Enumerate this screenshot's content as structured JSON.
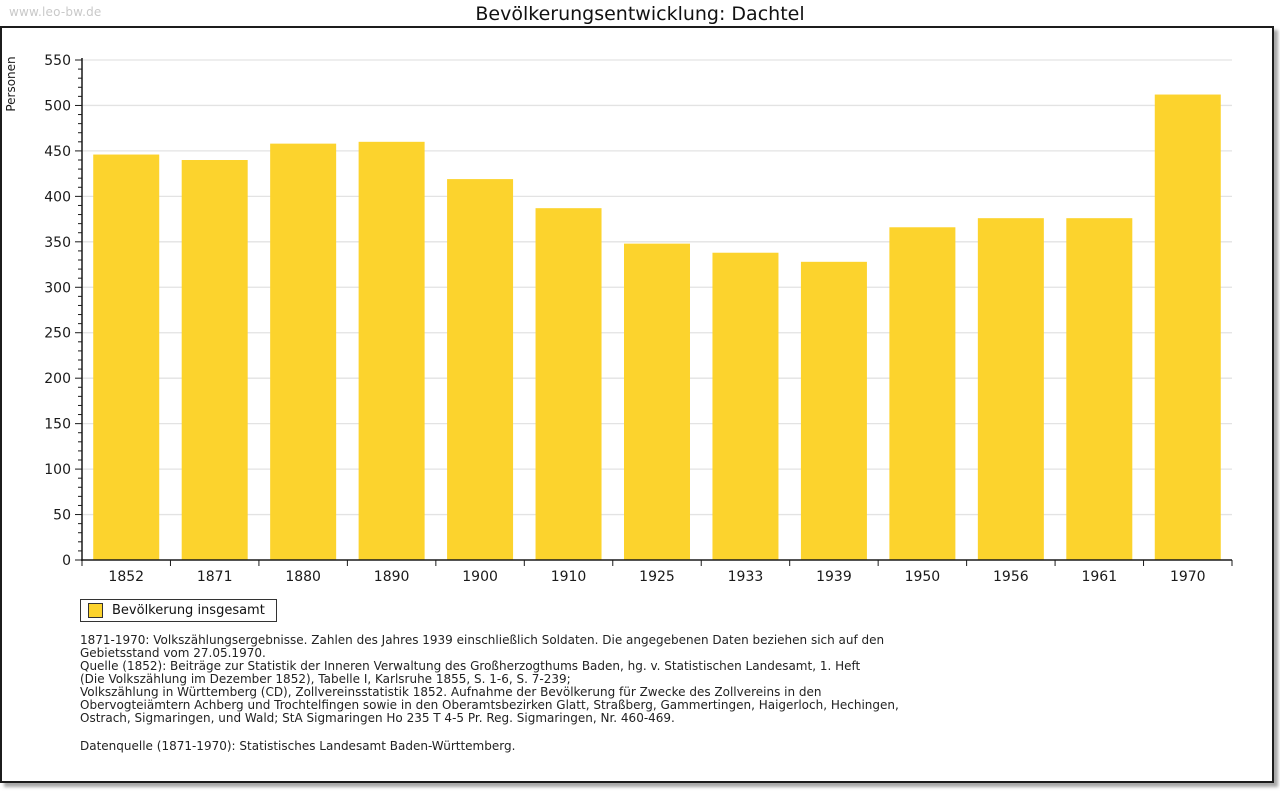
{
  "watermark": "www.leo-bw.de",
  "page_title": "Bevölkerungsentwicklung: Dachtel",
  "chart_data": {
    "type": "bar",
    "title": "Bevölkerungsentwicklung: Dachtel",
    "ylabel": "Personen",
    "xlabel": "",
    "categories": [
      "1852",
      "1871",
      "1880",
      "1890",
      "1900",
      "1910",
      "1925",
      "1933",
      "1939",
      "1950",
      "1956",
      "1961",
      "1970"
    ],
    "series": [
      {
        "name": "Bevölkerung insgesamt",
        "values": [
          446,
          440,
          458,
          460,
          419,
          387,
          348,
          338,
          328,
          366,
          376,
          376,
          512
        ]
      }
    ],
    "ylim": [
      0,
      550
    ],
    "y_major_step": 50,
    "y_minor_step": 10,
    "grid": true,
    "legend_position": "bottom-left",
    "bar_color": "#FCD32D",
    "grid_color": "#e3e3e3",
    "axis_color": "#1a1a1a"
  },
  "legend": {
    "label": "Bevölkerung insgesamt"
  },
  "footnotes": {
    "lines": [
      "1871-1970: Volkszählungsergebnisse. Zahlen des Jahres 1939 einschließlich Soldaten. Die angegebenen Daten beziehen sich auf den",
      "Gebietsstand vom 27.05.1970.",
      "Quelle (1852): Beiträge zur Statistik der Inneren Verwaltung des Großherzogthums Baden, hg. v. Statistischen Landesamt, 1. Heft",
      "(Die Volkszählung im Dezember 1852), Tabelle I, Karlsruhe 1855, S. 1-6, S. 7-239;",
      "Volkszählung in Württemberg (CD), Zollvereinsstatistik 1852. Aufnahme der Bevölkerung für Zwecke des Zollvereins in den",
      "Obervogteiämtern Achberg und Trochtelfingen sowie in den Oberamtsbezirken Glatt, Straßberg, Gammertingen, Haigerloch, Hechingen,",
      "Ostrach, Sigmaringen, und Wald; StA Sigmaringen Ho 235 T 4-5 Pr. Reg. Sigmaringen, Nr. 460-469."
    ],
    "datasource": "Datenquelle (1871-1970): Statistisches Landesamt Baden-Württemberg."
  }
}
